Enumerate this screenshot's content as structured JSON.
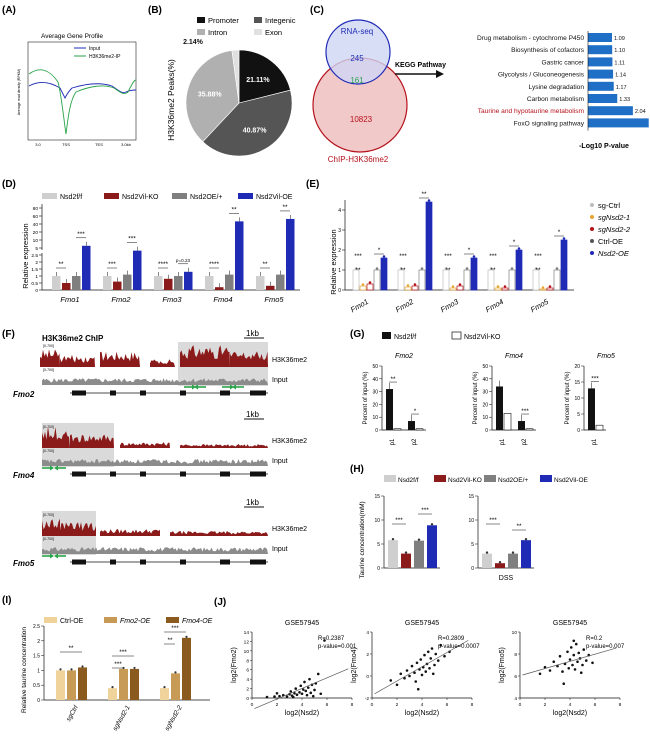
{
  "colors": {
    "red": "#b5121b",
    "darkred": "#8b1a1a",
    "blue": "#1f2bb5",
    "gray": "#7f7f7f",
    "lightgray": "#cfcfcf",
    "black": "#111111",
    "kegg_bar": "#1f6fc6",
    "green": "#2aa34a",
    "orange": "#e6a430",
    "brown": "#8b5a1e",
    "tan": "#c79a55"
  },
  "labels": {
    "A": "(A)",
    "B": "(B)",
    "C": "(C)",
    "D": "(D)",
    "E": "(E)",
    "F": "(F)",
    "G": "(G)",
    "H": "(H)",
    "I": "(I)",
    "J": "(J)"
  },
  "panelA": {
    "title": "Average Gene Profile",
    "ylabel": "Average read density (RPKM)",
    "legend": [
      "Input",
      "H3K36me2-IP"
    ],
    "xticks": [
      "3.0",
      "TSS",
      "TES",
      "3.0kb"
    ]
  },
  "panelB": {
    "ylabel": "H3K36me2 Peaks(%)",
    "legend": [
      "Promoter",
      "Integenic",
      "Intron",
      "Exon"
    ]
  },
  "panelC": {
    "rna_label": "RNA-seq",
    "chip_label": "ChIP-H3K36me2",
    "rna_only": "245",
    "overlap": "161",
    "chip_only": "10823",
    "arrow_label": "KEGG Pathway",
    "xlabel": "-Log10 P-value"
  },
  "panelD": {
    "ylabel": "Relative expression",
    "legend": [
      "Nsd2f/f",
      "Nsd2Vil-KO",
      "Nsd2OE/+",
      "Nsd2Vil-OE"
    ],
    "ptext": "p=0.23"
  },
  "panelE": {
    "ylabel": "Relative expression",
    "legend": [
      "sg-Ctrl",
      "sgNsd2-1",
      "sgNsd2-2",
      "Ctrl-OE",
      "Nsd2-OE"
    ]
  },
  "panelF": {
    "title": "H3K36me2 ChIP",
    "scale": "1kb",
    "range": "[0-700]",
    "tracks": [
      "H3K36me2",
      "Input"
    ],
    "genes": [
      "Fmo2",
      "Fmo4",
      "Fmo5"
    ]
  },
  "panelG": {
    "legend": [
      "Nsd2f/f",
      "Nsd2Vil-KO"
    ],
    "ylabel": "Percent of input (%)",
    "sub": [
      {
        "gene": "Fmo2",
        "sites": [
          "p1",
          "p2"
        ],
        "stars": [
          "**",
          "*"
        ]
      },
      {
        "gene": "Fmo4",
        "sites": [
          "p1",
          "p2"
        ],
        "stars": [
          "***"
        ]
      },
      {
        "gene": "Fmo5",
        "sites": [
          "p1"
        ],
        "stars": [
          "***"
        ]
      }
    ]
  },
  "panelH": {
    "legend": [
      "Nsd2f/f",
      "Nsd2Vil-KO",
      "Nsd2OE/+",
      "Nsd2Vil-OE"
    ],
    "ylabel": "Taurine concentration(mM)",
    "xlabel": "DSS"
  },
  "panelI": {
    "legend": [
      "Ctrl-OE",
      "Fmo2-OE",
      "Fmo4-OE"
    ],
    "ylabel": "Relative taurine concentration",
    "categories": [
      "sgCtrl",
      "sgNsd2-1",
      "sgNsd2-2"
    ]
  },
  "panelJ": {
    "titles": [
      "GSE57945",
      "GSE57945",
      "GSE57945"
    ],
    "xlabel": "log2(Nsd2)",
    "ylabels": [
      "log2(Fmo2)",
      "log2(Fmo4)",
      "log2(Fmo5)"
    ],
    "stats": [
      {
        "r": "R=0.2387",
        "p": "p-value=0.001"
      },
      {
        "r": "R=0.2809",
        "p": "p-value=0.0007"
      },
      {
        "r": "R=0.2",
        "p": "p-value=0.007"
      }
    ]
  },
  "chart_data": [
    {
      "type": "line",
      "panel": "A",
      "title": "Average Gene Profile",
      "x": [
        "3.0",
        "TSS",
        "TES",
        "3.0kb"
      ],
      "series": [
        {
          "name": "Input",
          "values": [
            0.62,
            0.55,
            0.62,
            0.6
          ]
        },
        {
          "name": "H3K36me2-IP",
          "values": [
            0.72,
            0.25,
            0.66,
            0.7
          ]
        }
      ]
    },
    {
      "type": "pie",
      "panel": "B",
      "categories": [
        "Promoter",
        "Integenic",
        "Intron",
        "Exon"
      ],
      "values": [
        21.11,
        40.87,
        35.88,
        2.14
      ]
    },
    {
      "type": "bar",
      "panel": "C",
      "categories": [
        "Drug metabolism - cytochrome P450",
        "Biosynthesis of cofactors",
        "Gastric cancer",
        "Glycolysis / Gluconeogenesis",
        "Lysine degradation",
        "Carbon metabolism",
        "Taurine and hypotaurine metabolism",
        "FoxO signaling pathway"
      ],
      "values": [
        1.09,
        1.1,
        1.11,
        1.14,
        1.17,
        1.33,
        2.04,
        2.76
      ],
      "xlabel": "-Log10 P-value"
    },
    {
      "type": "bar",
      "panel": "D",
      "ylabel": "Relative expression",
      "categories": [
        "Fmo1",
        "Fmo2",
        "Fmo3",
        "Fmo4",
        "Fmo5"
      ],
      "series": [
        {
          "name": "Nsd2f/f",
          "values": [
            1,
            1,
            1,
            1,
            1
          ]
        },
        {
          "name": "Nsd2Vil-KO",
          "values": [
            0.5,
            0.6,
            0.8,
            0.2,
            0.3
          ]
        },
        {
          "name": "Nsd2OE/+",
          "values": [
            1,
            1.1,
            1,
            1.1,
            1.1
          ]
        },
        {
          "name": "Nsd2Vil-OE",
          "values": [
            6,
            2.8,
            1.3,
            45,
            55
          ]
        }
      ],
      "stars": [
        [
          "**",
          "***"
        ],
        [
          "***",
          "***"
        ],
        [
          "****",
          "p=0.23"
        ],
        [
          "****",
          "**"
        ],
        [
          "**",
          "**"
        ]
      ]
    },
    {
      "type": "bar",
      "panel": "E",
      "ylabel": "Relative expression",
      "categories": [
        "Fmo1",
        "Fmo2",
        "Fmo3",
        "Fmo4",
        "Fmo5"
      ],
      "series": [
        {
          "name": "sg-Ctrl",
          "values": [
            1,
            1,
            1,
            1,
            1
          ]
        },
        {
          "name": "sgNsd2-1",
          "values": [
            0.2,
            0.15,
            0.1,
            0.1,
            0.05
          ]
        },
        {
          "name": "sgNsd2-2",
          "values": [
            0.3,
            0.2,
            0.2,
            0.1,
            0.1
          ]
        },
        {
          "name": "Ctrl-OE",
          "values": [
            1,
            1,
            1,
            1,
            1
          ]
        },
        {
          "name": "Nsd2-OE",
          "values": [
            1.6,
            4.4,
            1.6,
            2.0,
            2.5
          ]
        }
      ]
    },
    {
      "type": "bar",
      "panel": "G",
      "ylabel": "Percent of input (%)",
      "groups": [
        {
          "gene": "Fmo2",
          "sites": [
            "p1",
            "p2"
          ],
          "series": [
            {
              "name": "Nsd2f/f",
              "values": [
                32,
                7
              ]
            },
            {
              "name": "Nsd2Vil-KO",
              "values": [
                1,
                1
              ]
            }
          ],
          "ylim": [
            0,
            50
          ],
          "yticks": [
            0,
            10,
            20,
            30,
            40,
            50
          ]
        },
        {
          "gene": "Fmo4",
          "sites": [
            "p1",
            "p2"
          ],
          "series": [
            {
              "name": "Nsd2f/f",
              "values": [
                34,
                7
              ]
            },
            {
              "name": "Nsd2Vil-KO",
              "values": [
                13,
                1
              ]
            }
          ],
          "ylim": [
            0,
            50
          ],
          "yticks": [
            0,
            10,
            20,
            30,
            40,
            50
          ]
        },
        {
          "gene": "Fmo5",
          "sites": [
            "p1"
          ],
          "series": [
            {
              "name": "Nsd2f/f",
              "values": [
                13
              ]
            },
            {
              "name": "Nsd2Vil-KO",
              "values": [
                1.5
              ]
            }
          ],
          "ylim": [
            0,
            20
          ],
          "yticks": [
            0,
            5,
            10,
            15,
            20
          ]
        }
      ]
    },
    {
      "type": "bar",
      "panel": "H",
      "ylabel": "Taurine concentration(mM)",
      "groups": [
        {
          "label": "",
          "series": [
            {
              "name": "Nsd2f/f",
              "values": [
                5.8
              ]
            },
            {
              "name": "Nsd2Vil-KO",
              "values": [
                3
              ]
            },
            {
              "name": "Nsd2OE/+",
              "values": [
                5.7
              ]
            },
            {
              "name": "Nsd2Vil-OE",
              "values": [
                8.9
              ]
            }
          ],
          "ylim": [
            0,
            15
          ],
          "yticks": [
            0,
            5,
            10,
            15
          ]
        },
        {
          "label": "DSS",
          "series": [
            {
              "name": "Nsd2f/f",
              "values": [
                3
              ]
            },
            {
              "name": "Nsd2Vil-KO",
              "values": [
                1
              ]
            },
            {
              "name": "Nsd2OE/+",
              "values": [
                3
              ]
            },
            {
              "name": "Nsd2Vil-OE",
              "values": [
                5.8
              ]
            }
          ],
          "ylim": [
            0,
            15
          ],
          "yticks": [
            0,
            5,
            10,
            15
          ]
        }
      ]
    },
    {
      "type": "bar",
      "panel": "I",
      "ylabel": "Relative taurine concentration",
      "categories": [
        "sgCtrl",
        "sgNsd2-1",
        "sgNsd2-2"
      ],
      "series": [
        {
          "name": "Ctrl-OE",
          "values": [
            1,
            0.4,
            0.4
          ]
        },
        {
          "name": "Fmo2-OE",
          "values": [
            1,
            1.05,
            0.9
          ]
        },
        {
          "name": "Fmo4-OE",
          "values": [
            1.1,
            1.05,
            2.1
          ]
        }
      ],
      "ylim": [
        0,
        2.5
      ],
      "yticks": [
        0,
        0.5,
        1,
        1.5,
        2,
        2.5
      ]
    },
    {
      "type": "scatter",
      "panel": "J",
      "plots": [
        {
          "title": "GSE57945",
          "ylabel": "log2(Fmo2)",
          "xlim": [
            0,
            8
          ],
          "ylim": [
            0,
            14
          ],
          "yticks": [
            0,
            2,
            4,
            6,
            8,
            10,
            12,
            14
          ],
          "xticks": [
            0,
            2,
            4,
            6,
            8
          ],
          "points": [
            [
              1.2,
              0.2
            ],
            [
              1.8,
              0.3
            ],
            [
              2.2,
              0.4
            ],
            [
              2.5,
              0.6
            ],
            [
              2.8,
              0.3
            ],
            [
              3.0,
              0.8
            ],
            [
              3.1,
              1.4
            ],
            [
              3.2,
              0.5
            ],
            [
              3.4,
              1.0
            ],
            [
              3.5,
              2.0
            ],
            [
              3.6,
              0.7
            ],
            [
              3.8,
              1.2
            ],
            [
              3.9,
              2.6
            ],
            [
              4.0,
              0.9
            ],
            [
              4.1,
              1.8
            ],
            [
              4.2,
              3.4
            ],
            [
              4.3,
              1.5
            ],
            [
              4.4,
              0.6
            ],
            [
              4.5,
              2.2
            ],
            [
              4.6,
              4.0
            ],
            [
              4.7,
              1.1
            ],
            [
              4.8,
              2.8
            ],
            [
              5.0,
              1.7
            ],
            [
              5.1,
              3.1
            ],
            [
              5.3,
              5.1
            ],
            [
              5.5,
              0.9
            ],
            [
              5.8,
              12.2
            ],
            [
              2.0,
              1.0
            ],
            [
              3.3,
              0.2
            ],
            [
              4.9,
              0.4
            ]
          ]
        },
        {
          "title": "GSE57945",
          "ylabel": "log2(Fmo4)",
          "xlim": [
            0,
            8
          ],
          "ylim": [
            -2,
            4
          ],
          "yticks": [
            -2,
            0,
            2,
            4
          ],
          "xticks": [
            0,
            2,
            4,
            6,
            8
          ],
          "points": [
            [
              1.5,
              -0.4
            ],
            [
              2.0,
              -0.8
            ],
            [
              2.3,
              0.2
            ],
            [
              2.6,
              -0.2
            ],
            [
              2.8,
              0.5
            ],
            [
              3.0,
              0.0
            ],
            [
              3.2,
              0.9
            ],
            [
              3.4,
              0.3
            ],
            [
              3.5,
              -0.5
            ],
            [
              3.6,
              1.2
            ],
            [
              3.8,
              0.6
            ],
            [
              3.9,
              1.5
            ],
            [
              4.0,
              0.1
            ],
            [
              4.1,
              0.8
            ],
            [
              4.2,
              1.9
            ],
            [
              4.3,
              0.4
            ],
            [
              4.4,
              1.1
            ],
            [
              4.5,
              2.2
            ],
            [
              4.6,
              0.7
            ],
            [
              4.7,
              1.6
            ],
            [
              4.8,
              2.5
            ],
            [
              5.0,
              1.0
            ],
            [
              5.1,
              2.0
            ],
            [
              5.3,
              1.4
            ],
            [
              5.5,
              2.8
            ],
            [
              5.8,
              1.8
            ],
            [
              6.2,
              2.2
            ],
            [
              3.7,
              -1.2
            ],
            [
              4.9,
              0.2
            ]
          ]
        },
        {
          "title": "GSE57945",
          "ylabel": "log2(Fmo5)",
          "xlim": [
            0,
            8
          ],
          "ylim": [
            4,
            10
          ],
          "yticks": [
            4,
            6,
            8,
            10
          ],
          "xticks": [
            0,
            2,
            4,
            6,
            8
          ],
          "points": [
            [
              1.6,
              6.2
            ],
            [
              2.0,
              6.8
            ],
            [
              2.4,
              6.5
            ],
            [
              2.7,
              7.3
            ],
            [
              3.0,
              6.9
            ],
            [
              3.2,
              7.8
            ],
            [
              3.4,
              6.4
            ],
            [
              3.6,
              7.1
            ],
            [
              3.8,
              8.2
            ],
            [
              3.9,
              6.7
            ],
            [
              4.0,
              7.5
            ],
            [
              4.1,
              8.6
            ],
            [
              4.2,
              7.0
            ],
            [
              4.3,
              7.9
            ],
            [
              4.4,
              6.6
            ],
            [
              4.5,
              8.9
            ],
            [
              4.6,
              7.3
            ],
            [
              4.7,
              8.1
            ],
            [
              4.8,
              7.6
            ],
            [
              5.0,
              7.0
            ],
            [
              5.1,
              8.4
            ],
            [
              5.3,
              7.4
            ],
            [
              5.5,
              7.9
            ],
            [
              5.8,
              7.2
            ],
            [
              3.5,
              5.3
            ],
            [
              4.9,
              6.3
            ],
            [
              4.3,
              9.2
            ]
          ]
        }
      ],
      "xlabel": "log2(Nsd2)",
      "annotations": [
        {
          "r": "R=0.2387",
          "p": "p-value=0.001"
        },
        {
          "r": "R=0.2809",
          "p": "p-value=0.0007"
        },
        {
          "r": "R=0.2",
          "p": "p-value=0.007"
        }
      ]
    }
  ]
}
